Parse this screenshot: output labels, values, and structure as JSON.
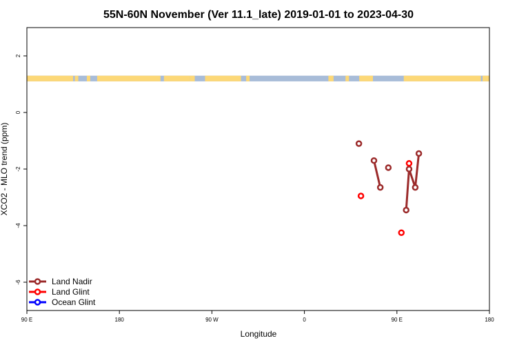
{
  "chart_data": {
    "type": "line",
    "title": "55N-60N November (Ver 11.1_late)   2019-01-01 to 2023-04-30",
    "xlabel": "Longitude",
    "ylabel": "XCO2 - MLO trend (ppm)",
    "xlim": [
      -90,
      180
    ],
    "ylim": [
      -7,
      3
    ],
    "x_ticks": [
      {
        "value": -90,
        "label": "90 E"
      },
      {
        "value": -36,
        "label": "180"
      },
      {
        "value": 18,
        "label": "90 W"
      },
      {
        "value": 72,
        "label": "0"
      },
      {
        "value": 126,
        "label": "90 E"
      },
      {
        "value": 180,
        "label": "180"
      }
    ],
    "y_ticks": [
      -6,
      -4,
      -2,
      0,
      2
    ],
    "land_ocean_strip": {
      "y_range": [
        1.1,
        1.3
      ],
      "ocean_color": "#a8bcd8",
      "land_color": "#fcd878",
      "land_segments": [
        [
          -90,
          -63
        ],
        [
          -62,
          -60
        ],
        [
          -55,
          -53
        ],
        [
          -49,
          -12
        ],
        [
          -10,
          5
        ],
        [
          5,
          8
        ],
        [
          14,
          35
        ],
        [
          38,
          40
        ],
        [
          86,
          89
        ],
        [
          96,
          98
        ],
        [
          104,
          112
        ],
        [
          130,
          175
        ],
        [
          176,
          180
        ]
      ]
    },
    "series": [
      {
        "name": "Land Nadir",
        "color": "#9b2a2a",
        "segments": [
          [
            {
              "x": 103.8,
              "y": -1.1
            }
          ],
          [
            {
              "x": 112.6,
              "y": -1.7
            },
            {
              "x": 116.3,
              "y": -2.65
            }
          ],
          [
            {
              "x": 121.0,
              "y": -1.95
            }
          ],
          [
            {
              "x": 131.4,
              "y": -3.45
            },
            {
              "x": 133.1,
              "y": -2.0
            },
            {
              "x": 136.7,
              "y": -2.65
            },
            {
              "x": 138.8,
              "y": -1.45
            }
          ]
        ]
      },
      {
        "name": "Land Glint",
        "color": "#ff0000",
        "segments": [
          [
            {
              "x": 105.0,
              "y": -2.95
            }
          ],
          [
            {
              "x": 128.6,
              "y": -4.25
            }
          ],
          [
            {
              "x": 133.1,
              "y": -1.8
            }
          ]
        ]
      },
      {
        "name": "Ocean Glint",
        "color": "#0000ff",
        "segments": []
      }
    ],
    "legend_position": "bottom-left",
    "grid": false
  }
}
